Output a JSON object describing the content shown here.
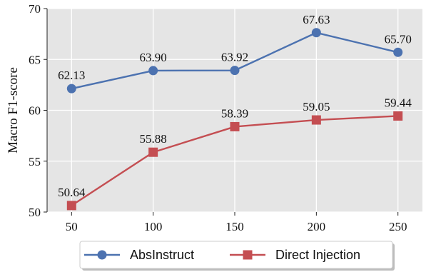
{
  "chart_data": {
    "type": "line",
    "title": "",
    "xlabel": "",
    "ylabel": "Macro F1-score",
    "x": [
      50,
      100,
      150,
      200,
      250
    ],
    "x_tick_labels": [
      "50",
      "100",
      "150",
      "200",
      "250"
    ],
    "xlim": [
      35,
      265
    ],
    "ylim": [
      50,
      70
    ],
    "y_ticks": [
      50,
      55,
      60,
      65,
      70
    ],
    "y_tick_labels": [
      "50",
      "55",
      "60",
      "65",
      "70"
    ],
    "grid": true,
    "background": "#e5e5e5",
    "legend_position": "bottom",
    "series": [
      {
        "name": "AbsInstruct",
        "values": [
          62.13,
          63.9,
          63.92,
          67.63,
          65.7
        ],
        "labels": [
          "62.13",
          "63.90",
          "63.92",
          "67.63",
          "65.70"
        ],
        "color": "#4c72b0",
        "marker": "circle"
      },
      {
        "name": "Direct Injection",
        "values": [
          50.64,
          55.88,
          58.39,
          59.05,
          59.44
        ],
        "labels": [
          "50.64",
          "55.88",
          "58.39",
          "59.05",
          "59.44"
        ],
        "color": "#c44e52",
        "marker": "square"
      }
    ]
  }
}
